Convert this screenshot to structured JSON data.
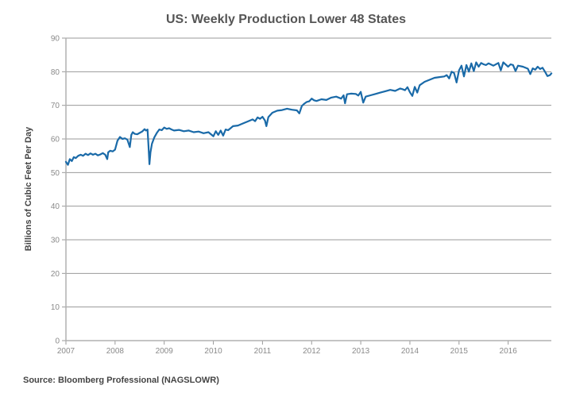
{
  "chart_data": {
    "type": "line",
    "title": "US: Weekly Production Lower 48 States",
    "xlabel": "",
    "ylabel": "Billions of Cubic Feet Per Day",
    "source": "Source: Bloomberg Professional (NAGSLOWR)",
    "xlim": [
      2007,
      2016.88
    ],
    "ylim": [
      0,
      90
    ],
    "x_ticks": [
      2007,
      2008,
      2009,
      2010,
      2011,
      2012,
      2013,
      2014,
      2015,
      2016
    ],
    "x_tick_labels": [
      "2007",
      "2008",
      "2009",
      "2010",
      "2011",
      "2012",
      "2013",
      "2014",
      "2015",
      "2016"
    ],
    "y_ticks": [
      0,
      10,
      20,
      30,
      40,
      50,
      60,
      70,
      80,
      90
    ],
    "y_tick_labels": [
      "0",
      "10",
      "20",
      "30",
      "40",
      "50",
      "60",
      "70",
      "80",
      "90"
    ],
    "grid": true,
    "legend": "none",
    "line_color": "#1a6aa8",
    "series": [
      {
        "name": "Weekly Production Lower 48 States",
        "x": [
          2007.0,
          2007.04,
          2007.08,
          2007.12,
          2007.16,
          2007.2,
          2007.25,
          2007.3,
          2007.35,
          2007.4,
          2007.45,
          2007.5,
          2007.55,
          2007.6,
          2007.65,
          2007.7,
          2007.75,
          2007.8,
          2007.84,
          2007.86,
          2007.9,
          2007.95,
          2008.0,
          2008.05,
          2008.1,
          2008.15,
          2008.2,
          2008.25,
          2008.3,
          2008.33,
          2008.36,
          2008.4,
          2008.45,
          2008.5,
          2008.55,
          2008.6,
          2008.63,
          2008.66,
          2008.68,
          2008.7,
          2008.72,
          2008.75,
          2008.8,
          2008.85,
          2008.9,
          2008.95,
          2009.0,
          2009.05,
          2009.1,
          2009.15,
          2009.2,
          2009.3,
          2009.4,
          2009.5,
          2009.6,
          2009.7,
          2009.8,
          2009.9,
          2010.0,
          2010.05,
          2010.1,
          2010.15,
          2010.2,
          2010.25,
          2010.3,
          2010.35,
          2010.4,
          2010.5,
          2010.6,
          2010.7,
          2010.8,
          2010.85,
          2010.9,
          2010.95,
          2011.0,
          2011.05,
          2011.08,
          2011.12,
          2011.2,
          2011.3,
          2011.4,
          2011.5,
          2011.6,
          2011.7,
          2011.75,
          2011.8,
          2011.85,
          2011.9,
          2011.95,
          2012.0,
          2012.05,
          2012.1,
          2012.2,
          2012.3,
          2012.4,
          2012.5,
          2012.6,
          2012.65,
          2012.68,
          2012.72,
          2012.8,
          2012.9,
          2012.95,
          2013.0,
          2013.05,
          2013.1,
          2013.2,
          2013.3,
          2013.4,
          2013.5,
          2013.6,
          2013.7,
          2013.8,
          2013.85,
          2013.9,
          2013.95,
          2014.0,
          2014.05,
          2014.1,
          2014.15,
          2014.2,
          2014.3,
          2014.4,
          2014.5,
          2014.6,
          2014.7,
          2014.75,
          2014.8,
          2014.85,
          2014.9,
          2014.95,
          2015.0,
          2015.05,
          2015.1,
          2015.15,
          2015.2,
          2015.25,
          2015.3,
          2015.35,
          2015.4,
          2015.45,
          2015.5,
          2015.55,
          2015.6,
          2015.7,
          2015.8,
          2015.85,
          2015.9,
          2016.0,
          2016.05,
          2016.1,
          2016.15,
          2016.2,
          2016.3,
          2016.4,
          2016.45,
          2016.5,
          2016.55,
          2016.6,
          2016.65,
          2016.7,
          2016.75,
          2016.8,
          2016.85,
          2016.88
        ],
        "values": [
          53.2,
          52.3,
          54.0,
          53.4,
          54.6,
          54.3,
          55.0,
          55.3,
          55.0,
          55.6,
          55.2,
          55.7,
          55.3,
          55.6,
          55.1,
          55.4,
          55.8,
          55.3,
          54.0,
          56.0,
          56.5,
          56.3,
          56.8,
          59.5,
          60.6,
          60.0,
          60.2,
          59.8,
          57.6,
          61.2,
          62.0,
          61.5,
          61.4,
          61.8,
          62.2,
          62.9,
          62.5,
          62.8,
          58.0,
          52.5,
          56.0,
          58.5,
          60.5,
          61.8,
          62.8,
          62.6,
          63.4,
          63.0,
          63.2,
          62.8,
          62.5,
          62.7,
          62.3,
          62.5,
          62.0,
          62.2,
          61.7,
          62.0,
          60.8,
          62.3,
          61.2,
          62.5,
          61.0,
          62.8,
          62.6,
          63.2,
          63.8,
          64.0,
          64.6,
          65.2,
          65.8,
          65.3,
          66.4,
          66.0,
          66.6,
          65.5,
          63.8,
          66.5,
          67.8,
          68.4,
          68.6,
          69.0,
          68.7,
          68.5,
          67.6,
          69.8,
          70.5,
          71.0,
          71.2,
          72.0,
          71.5,
          71.3,
          71.8,
          71.6,
          72.3,
          72.6,
          72.0,
          73.0,
          70.6,
          73.3,
          73.5,
          73.4,
          72.9,
          74.0,
          70.8,
          72.6,
          73.0,
          73.4,
          73.8,
          74.2,
          74.6,
          74.3,
          75.0,
          74.8,
          74.5,
          75.4,
          73.9,
          72.8,
          75.5,
          73.8,
          76.0,
          77.0,
          77.6,
          78.2,
          78.4,
          78.6,
          79.0,
          78.0,
          80.0,
          79.6,
          76.8,
          80.4,
          81.8,
          78.6,
          82.0,
          80.0,
          82.5,
          80.2,
          82.8,
          81.5,
          82.6,
          82.2,
          82.0,
          82.5,
          81.8,
          82.6,
          80.4,
          82.8,
          81.5,
          82.2,
          82.0,
          80.2,
          81.8,
          81.5,
          80.9,
          79.3,
          81.0,
          80.6,
          81.5,
          80.8,
          81.2,
          80.0,
          78.7,
          79.0,
          79.5
        ]
      }
    ]
  }
}
